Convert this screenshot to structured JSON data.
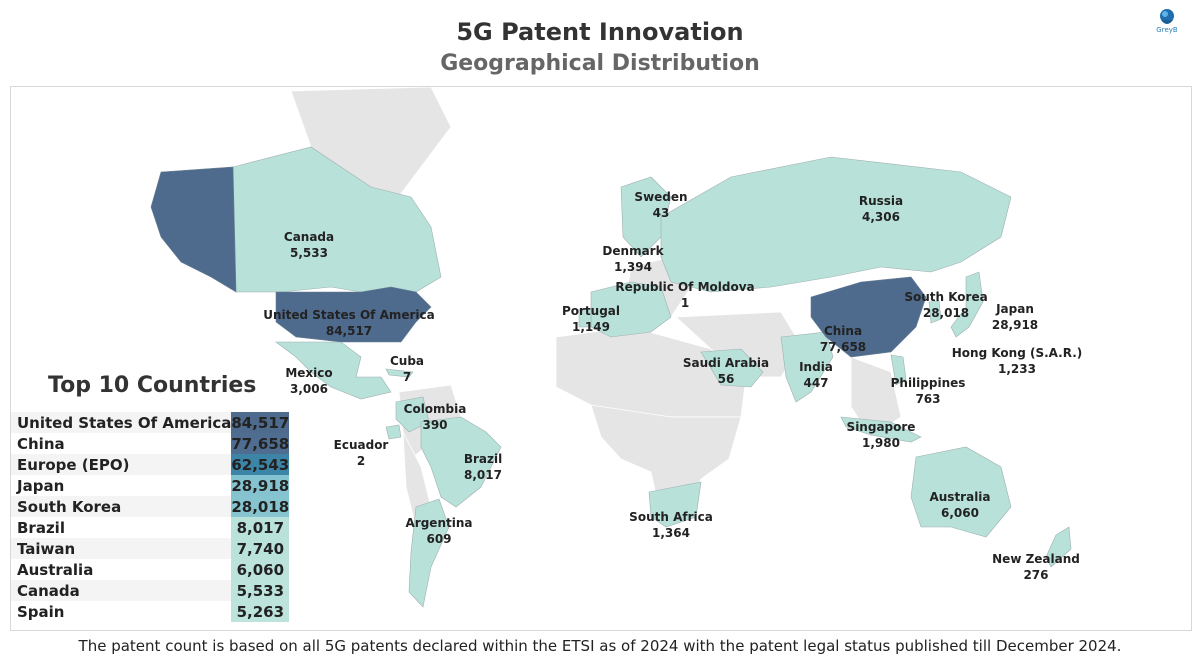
{
  "header": {
    "title": "5G Patent Innovation",
    "subtitle": "Geographical Distribution",
    "logo_text": "GreyB"
  },
  "colors": {
    "high": "#4e6a8c",
    "mid": "#3d85a6",
    "mid_light": "#8cc7d0",
    "low": "#b7e1d9",
    "no_data": "#e5e5e5",
    "border": "#9fb0b0"
  },
  "chart_data": [
    {
      "type": "map",
      "title": "5G Patent Innovation",
      "subtitle": "Geographical Distribution",
      "regions": [
        {
          "name": "United States Of America",
          "value": 84517
        },
        {
          "name": "China",
          "value": 77658
        },
        {
          "name": "Japan",
          "value": 28918
        },
        {
          "name": "South Korea",
          "value": 28018
        },
        {
          "name": "Brazil",
          "value": 8017
        },
        {
          "name": "Australia",
          "value": 6060
        },
        {
          "name": "Canada",
          "value": 5533
        },
        {
          "name": "Russia",
          "value": 4306
        },
        {
          "name": "Mexico",
          "value": 3006
        },
        {
          "name": "Singapore",
          "value": 1980
        },
        {
          "name": "Denmark",
          "value": 1394
        },
        {
          "name": "South Africa",
          "value": 1364
        },
        {
          "name": "Hong Kong (S.A.R.)",
          "value": 1233
        },
        {
          "name": "Portugal",
          "value": 1149
        },
        {
          "name": "Philippines",
          "value": 763
        },
        {
          "name": "Argentina",
          "value": 609
        },
        {
          "name": "India",
          "value": 447
        },
        {
          "name": "Colombia",
          "value": 390
        },
        {
          "name": "New Zealand",
          "value": 276
        },
        {
          "name": "Saudi Arabia",
          "value": 56
        },
        {
          "name": "Sweden",
          "value": 43
        },
        {
          "name": "Cuba",
          "value": 7
        },
        {
          "name": "Ecuador",
          "value": 2
        },
        {
          "name": "Republic Of Moldova",
          "value": 1
        }
      ],
      "map_labels": [
        {
          "name": "Canada",
          "value": "5,533"
        },
        {
          "name": "United States Of America",
          "value": "84,517"
        },
        {
          "name": "Mexico",
          "value": "3,006"
        },
        {
          "name": "Cuba",
          "value": "7"
        },
        {
          "name": "Colombia",
          "value": "390"
        },
        {
          "name": "Ecuador",
          "value": "2"
        },
        {
          "name": "Brazil",
          "value": "8,017"
        },
        {
          "name": "Argentina",
          "value": "609"
        },
        {
          "name": "Portugal",
          "value": "1,149"
        },
        {
          "name": "Sweden",
          "value": "43"
        },
        {
          "name": "Denmark",
          "value": "1,394"
        },
        {
          "name": "Republic Of Moldova",
          "value": "1"
        },
        {
          "name": "Russia",
          "value": "4,306"
        },
        {
          "name": "Saudi Arabia",
          "value": "56"
        },
        {
          "name": "India",
          "value": "447"
        },
        {
          "name": "China",
          "value": "77,658"
        },
        {
          "name": "South Korea",
          "value": "28,018"
        },
        {
          "name": "Japan",
          "value": "28,918"
        },
        {
          "name": "Hong Kong (S.A.R.)",
          "value": "1,233"
        },
        {
          "name": "Philippines",
          "value": "763"
        },
        {
          "name": "Singapore",
          "value": "1,980"
        },
        {
          "name": "South Africa",
          "value": "1,364"
        },
        {
          "name": "Australia",
          "value": "6,060"
        },
        {
          "name": "New Zealand",
          "value": "276"
        }
      ]
    },
    {
      "type": "table",
      "title": "Top 10 Countries",
      "rows": [
        {
          "name": "United States Of America",
          "value": 84517,
          "display": "84,517",
          "color": "#4e6a8c"
        },
        {
          "name": "China",
          "value": 77658,
          "display": "77,658",
          "color": "#4f6d90"
        },
        {
          "name": "Europe (EPO)",
          "value": 62543,
          "display": "62,543",
          "color": "#3d85a6"
        },
        {
          "name": "Japan",
          "value": 28918,
          "display": "28,918",
          "color": "#84c3cf"
        },
        {
          "name": "South Korea",
          "value": 28018,
          "display": "28,018",
          "color": "#86c4d0"
        },
        {
          "name": "Brazil",
          "value": 8017,
          "display": "8,017",
          "color": "#b9e2da"
        },
        {
          "name": "Taiwan",
          "value": 7740,
          "display": "7,740",
          "color": "#b9e2da"
        },
        {
          "name": "Australia",
          "value": 6060,
          "display": "6,060",
          "color": "#bbe3db"
        },
        {
          "name": "Canada",
          "value": 5533,
          "display": "5,533",
          "color": "#bce4dc"
        },
        {
          "name": "Spain",
          "value": 5263,
          "display": "5,263",
          "color": "#bce4dc"
        }
      ]
    }
  ],
  "footer": {
    "note": "The patent count is based on all 5G patents declared within the ETSI as of 2024 with the patent legal status published till December 2024."
  }
}
